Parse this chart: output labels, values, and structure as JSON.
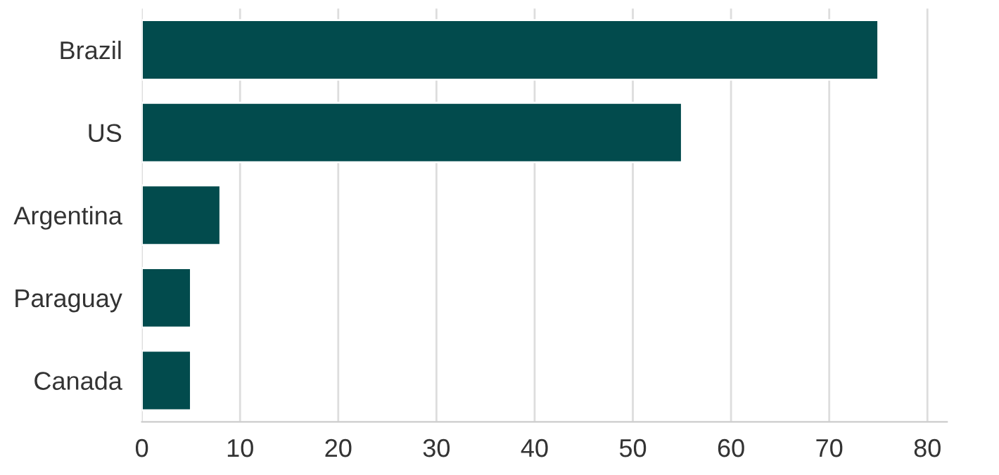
{
  "chart_data": {
    "type": "bar",
    "orientation": "horizontal",
    "categories": [
      "Brazil",
      "US",
      "Argentina",
      "Paraguay",
      "Canada"
    ],
    "values": [
      75,
      55,
      8,
      5,
      5
    ],
    "color": "#024b4d",
    "xlim": [
      0,
      82
    ],
    "xticks": [
      0,
      10,
      20,
      30,
      40,
      50,
      60,
      70,
      80
    ],
    "grid": "x",
    "legend": false
  }
}
